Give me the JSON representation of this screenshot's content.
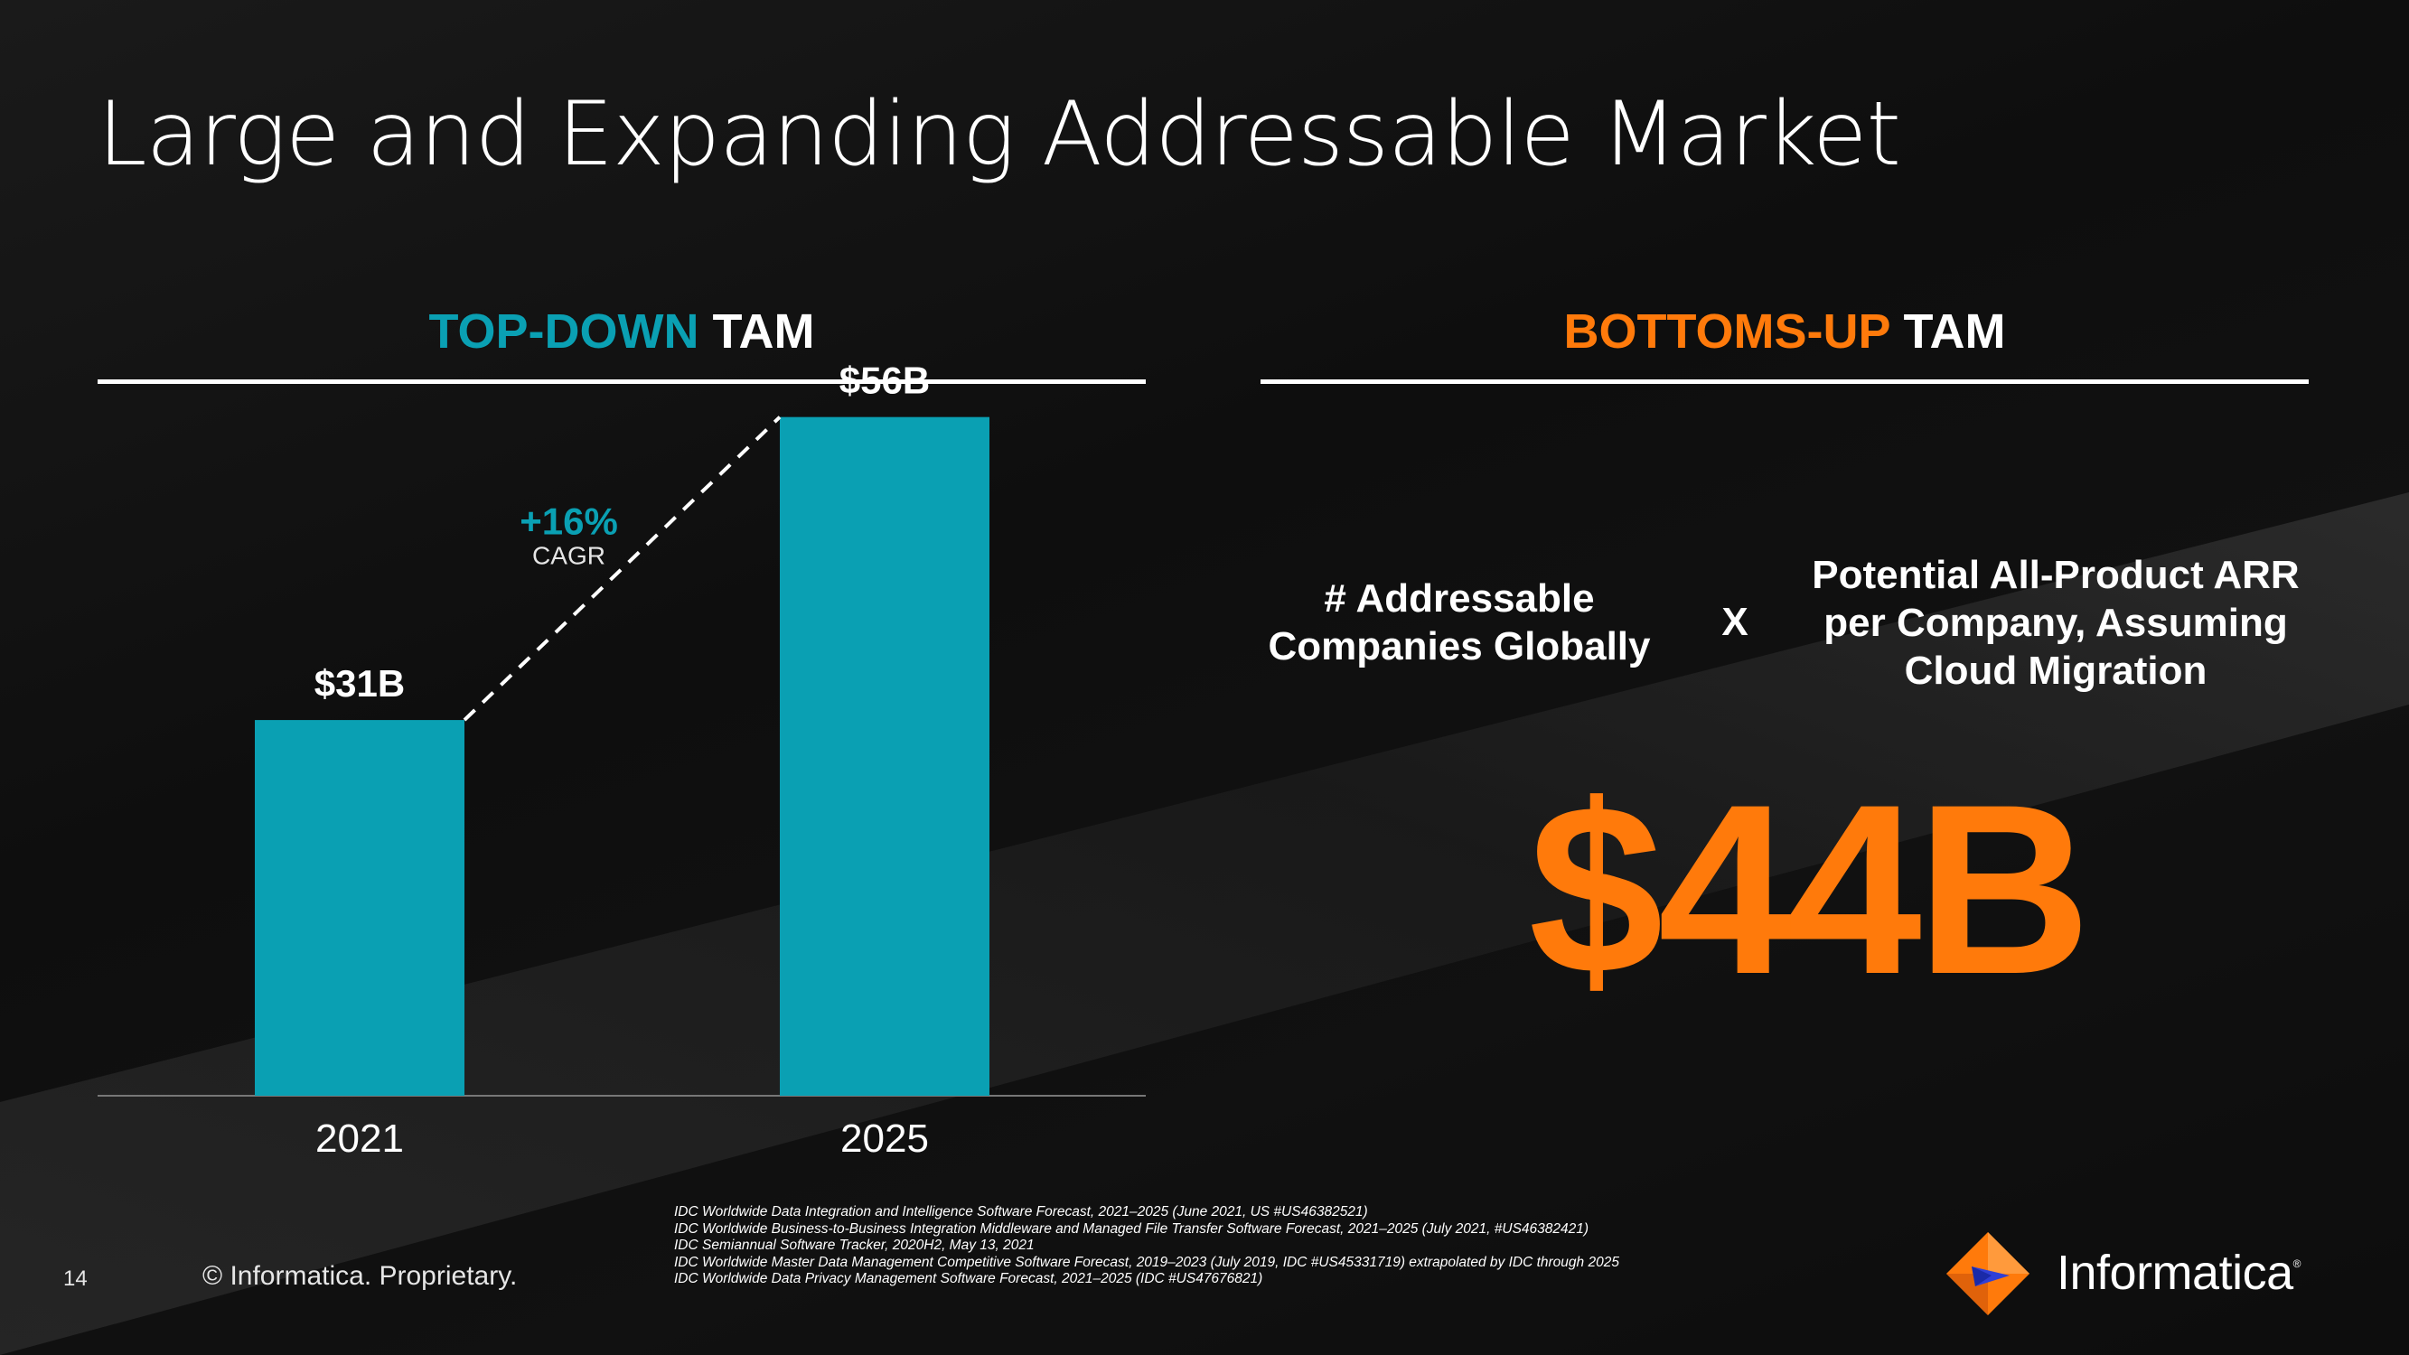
{
  "title": "Large and Expanding Addressable Market",
  "left_section": {
    "highlight": "TOP-DOWN",
    "rest": "TAM"
  },
  "right_section": {
    "highlight": "BOTTOMS-UP",
    "rest": "TAM"
  },
  "colors": {
    "teal": "#0aa0b3",
    "orange": "#ff7a0b",
    "text": "#ffffff",
    "axis": "#777777"
  },
  "chart_data": {
    "type": "bar",
    "categories": [
      "2021",
      "2025"
    ],
    "values": [
      31,
      56
    ],
    "value_labels": [
      "$31B",
      "$56B"
    ],
    "title": "",
    "xlabel": "",
    "ylabel": "",
    "ylim": [
      0,
      60
    ],
    "grid": false,
    "bar_color": "#0aa0b3",
    "growth_annotation": {
      "value": "+16%",
      "label": "CAGR"
    }
  },
  "equation": {
    "term1": [
      "# Addressable",
      "Companies Globally"
    ],
    "operator": "X",
    "term2": [
      "Potential All-Product ARR",
      "per Company, Assuming",
      "Cloud Migration"
    ],
    "result": "$44B"
  },
  "footer": {
    "page_number": "14",
    "copyright": "© Informatica. Proprietary.",
    "sources": [
      "IDC Worldwide Data Integration and Intelligence Software Forecast, 2021–2025 (June 2021, US #US46382521)",
      "IDC Worldwide Business-to-Business Integration Middleware and Managed File Transfer Software Forecast, 2021–2025 (July 2021, #US46382421)",
      "IDC Semiannual Software Tracker, 2020H2, May 13, 2021",
      "IDC Worldwide Master Data Management Competitive Software Forecast, 2019–2023 (July 2019, IDC #US45331719) extrapolated by IDC through 2025",
      "IDC Worldwide Data Privacy Management Software Forecast, 2021–2025 (IDC #US47676821)"
    ],
    "logo_text": "Informatica",
    "logo_mark": "®"
  }
}
